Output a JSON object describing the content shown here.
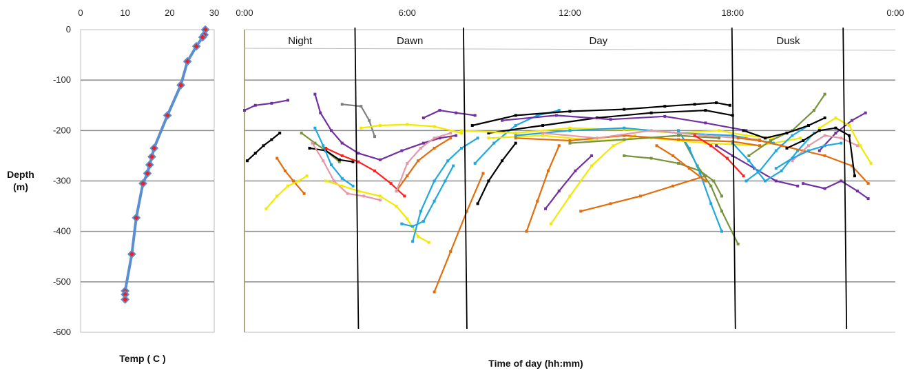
{
  "chart_data": [
    {
      "type": "line",
      "subtype": "temperature-depth-profile",
      "xlabel": "Temp ( C )",
      "ylabel": "Depth (m)",
      "xlim": [
        0,
        30
      ],
      "ylim": [
        -600,
        0
      ],
      "x_ticks": [
        "0",
        "10",
        "20",
        "30"
      ],
      "y_ticks": [
        "0",
        "-100",
        "-200",
        "-300",
        "-400",
        "-500",
        "-600"
      ],
      "grid": "horizontal",
      "line_color": "#5b8fcf",
      "marker_color": "#e8202a",
      "series": [
        {
          "x": [
            28,
            27.8,
            27.4,
            26,
            24,
            22.5,
            19.5,
            16.5,
            16,
            15.5,
            15,
            14,
            12.5,
            11.5,
            10,
            10,
            10
          ],
          "y": [
            0,
            -10,
            -15,
            -33,
            -63,
            -110,
            -170,
            -235,
            -252,
            -268,
            -285,
            -305,
            -373,
            -445,
            -518,
            -525,
            -535
          ]
        }
      ]
    },
    {
      "type": "line",
      "subtype": "dive-tracks",
      "xlabel": "Time of day (hh:mm)",
      "ylabel": "",
      "x_ticks": [
        "0:00",
        "6:00",
        "12:00",
        "18:00",
        "0:00"
      ],
      "xlim_hours": [
        0,
        24
      ],
      "ylim": [
        -600,
        0
      ],
      "grid": "horizontal",
      "periods": [
        {
          "label": "Night",
          "start_hour": 0,
          "end_hour": 4.1
        },
        {
          "label": "Dawn",
          "start_hour": 4.1,
          "end_hour": 8.1
        },
        {
          "label": "Day",
          "start_hour": 8.1,
          "end_hour": 18.0
        },
        {
          "label": "Dusk",
          "start_hour": 18.0,
          "end_hour": 22.1
        }
      ],
      "palette": {
        "purple": "#7030a0",
        "orange": "#e46c0a",
        "cyan": "#1fa7e0",
        "yellow": "#f2e900",
        "black": "#000000",
        "red": "#ff1f1f",
        "pink": "#e598a8",
        "olive": "#77933c",
        "gray": "#808080"
      },
      "series": [
        {
          "color": "purple",
          "x": [
            0.0,
            0.4,
            1.0,
            1.6
          ],
          "y": [
            -160,
            -150,
            -146,
            -140
          ]
        },
        {
          "color": "black",
          "x": [
            0.1,
            0.4,
            0.7,
            1.0,
            1.3
          ],
          "y": [
            -260,
            -245,
            -230,
            -218,
            -205
          ]
        },
        {
          "color": "orange",
          "x": [
            1.2,
            1.5,
            1.8,
            2.2
          ],
          "y": [
            -255,
            -280,
            -300,
            -325
          ]
        },
        {
          "color": "yellow",
          "x": [
            0.8,
            1.2,
            1.6,
            2.0,
            2.3
          ],
          "y": [
            -355,
            -330,
            -310,
            -300,
            -290
          ]
        },
        {
          "color": "olive",
          "x": [
            2.1,
            2.6,
            3.0,
            3.5
          ],
          "y": [
            -205,
            -225,
            -240,
            -262
          ]
        },
        {
          "color": "black",
          "x": [
            2.4,
            3.0,
            3.5,
            4.0
          ],
          "y": [
            -235,
            -240,
            -258,
            -262
          ]
        },
        {
          "color": "pink",
          "x": [
            2.5,
            2.9,
            3.3,
            3.8,
            4.4,
            5.0
          ],
          "y": [
            -225,
            -260,
            -300,
            -325,
            -330,
            -338
          ]
        },
        {
          "color": "cyan",
          "x": [
            2.6,
            2.9,
            3.2,
            3.6,
            4.0
          ],
          "y": [
            -195,
            -230,
            -268,
            -295,
            -310
          ]
        },
        {
          "color": "yellow",
          "x": [
            3.0,
            3.6,
            4.2,
            5.0,
            5.6,
            6.0,
            6.4,
            6.8
          ],
          "y": [
            -300,
            -310,
            -320,
            -330,
            -350,
            -375,
            -410,
            -422
          ]
        },
        {
          "color": "purple",
          "x": [
            2.6,
            2.8,
            3.2,
            3.6,
            4.2,
            5.0,
            5.8,
            6.6,
            7.2,
            7.8
          ],
          "y": [
            -128,
            -165,
            -200,
            -225,
            -245,
            -258,
            -240,
            -225,
            -215,
            -210
          ]
        },
        {
          "color": "gray",
          "x": [
            3.6,
            4.3,
            4.6,
            4.8
          ],
          "y": [
            -148,
            -152,
            -180,
            -212
          ]
        },
        {
          "color": "red",
          "x": [
            3.0,
            3.6,
            4.2,
            4.8,
            5.4,
            5.9
          ],
          "y": [
            -235,
            -250,
            -262,
            -280,
            -305,
            -330
          ]
        },
        {
          "color": "orange",
          "x": [
            5.6,
            6.0,
            6.4,
            7.0,
            7.6
          ],
          "y": [
            -320,
            -290,
            -260,
            -235,
            -215
          ]
        },
        {
          "color": "cyan",
          "x": [
            5.8,
            6.2,
            6.6,
            7.0,
            7.4,
            7.7
          ],
          "y": [
            -385,
            -390,
            -380,
            -340,
            -300,
            -270
          ]
        },
        {
          "color": "cyan",
          "x": [
            6.2,
            6.5,
            7.0,
            7.5,
            8.0,
            8.6
          ],
          "y": [
            -420,
            -360,
            -300,
            -260,
            -235,
            -215
          ]
        },
        {
          "color": "pink",
          "x": [
            5.6,
            6.0,
            6.5,
            7.0,
            7.6
          ],
          "y": [
            -320,
            -265,
            -235,
            -215,
            -205
          ]
        },
        {
          "color": "purple",
          "x": [
            6.6,
            7.2,
            7.8,
            8.5
          ],
          "y": [
            -175,
            -160,
            -165,
            -170
          ]
        },
        {
          "color": "yellow",
          "x": [
            4.3,
            5.0,
            6.0,
            7.0,
            8.0
          ],
          "y": [
            -195,
            -190,
            -188,
            -192,
            -205
          ]
        },
        {
          "color": "orange",
          "x": [
            7.0,
            7.6,
            8.2,
            8.8
          ],
          "y": [
            -520,
            -440,
            -360,
            -285
          ]
        },
        {
          "color": "black",
          "x": [
            8.6,
            9.0,
            9.5,
            10.0
          ],
          "y": [
            -345,
            -300,
            -260,
            -225
          ]
        },
        {
          "color": "cyan",
          "x": [
            8.5,
            9.2,
            10.0,
            10.8,
            11.6
          ],
          "y": [
            -265,
            -225,
            -190,
            -170,
            -160
          ]
        },
        {
          "color": "orange",
          "x": [
            10.4,
            10.8,
            11.2,
            11.6
          ],
          "y": [
            -400,
            -340,
            -280,
            -230
          ]
        },
        {
          "color": "purple",
          "x": [
            11.1,
            11.6,
            12.2,
            12.8
          ],
          "y": [
            -355,
            -320,
            -280,
            -250
          ]
        },
        {
          "color": "yellow",
          "x": [
            11.3,
            12.0,
            12.8,
            13.6,
            14.4
          ],
          "y": [
            -385,
            -330,
            -270,
            -230,
            -210
          ]
        },
        {
          "color": "orange",
          "x": [
            12.4,
            13.5,
            14.6,
            15.8,
            17.0
          ],
          "y": [
            -360,
            -345,
            -330,
            -310,
            -290
          ]
        },
        {
          "color": "olive",
          "x": [
            14.0,
            15.0,
            16.0,
            16.8,
            17.3,
            17.6
          ],
          "y": [
            -250,
            -255,
            -265,
            -280,
            -300,
            -330
          ]
        },
        {
          "color": "olive",
          "x": [
            16.2,
            16.7,
            17.2,
            17.6,
            18.2
          ],
          "y": [
            -220,
            -270,
            -310,
            -360,
            -425
          ]
        },
        {
          "color": "cyan",
          "x": [
            16.0,
            16.4,
            16.8,
            17.2,
            17.6
          ],
          "y": [
            -200,
            -235,
            -285,
            -345,
            -400
          ]
        },
        {
          "color": "orange",
          "x": [
            15.2,
            15.8,
            16.4,
            17.0
          ],
          "y": [
            -230,
            -250,
            -275,
            -300
          ]
        },
        {
          "color": "black",
          "x": [
            8.4,
            10.0,
            12.0,
            14.0,
            15.5,
            16.6,
            17.4,
            17.9
          ],
          "y": [
            -190,
            -170,
            -162,
            -158,
            -152,
            -148,
            -145,
            -150
          ]
        },
        {
          "color": "black",
          "x": [
            9.0,
            11.0,
            13.0,
            15.0,
            17.0,
            18.0
          ],
          "y": [
            -205,
            -190,
            -175,
            -165,
            -160,
            -170
          ]
        },
        {
          "color": "yellow",
          "x": [
            8.0,
            10.0,
            12.0,
            14.0,
            16.0,
            17.5,
            18.5,
            19.5
          ],
          "y": [
            -200,
            -205,
            -195,
            -198,
            -205,
            -200,
            -210,
            -215
          ]
        },
        {
          "color": "yellow",
          "x": [
            9.0,
            11.0,
            13.0,
            15.0,
            17.0,
            19.0,
            20.5
          ],
          "y": [
            -215,
            -210,
            -220,
            -215,
            -225,
            -230,
            -215
          ]
        },
        {
          "color": "purple",
          "x": [
            9.5,
            11.5,
            13.5,
            15.5,
            17.0,
            18.5
          ],
          "y": [
            -180,
            -170,
            -178,
            -172,
            -185,
            -200
          ]
        },
        {
          "color": "cyan",
          "x": [
            10.0,
            12.0,
            14.0,
            16.0,
            18.0,
            19.5
          ],
          "y": [
            -210,
            -200,
            -195,
            -205,
            -210,
            -225
          ]
        },
        {
          "color": "orange",
          "x": [
            10.0,
            12.0,
            14.0,
            16.0,
            18.0,
            19.0
          ],
          "y": [
            -215,
            -220,
            -210,
            -218,
            -222,
            -230
          ]
        },
        {
          "color": "pink",
          "x": [
            11.0,
            13.0,
            15.0,
            17.0,
            19.0
          ],
          "y": [
            -205,
            -215,
            -200,
            -210,
            -218
          ]
        },
        {
          "color": "olive",
          "x": [
            12.0,
            14.0,
            16.0,
            17.5
          ],
          "y": [
            -225,
            -218,
            -210,
            -215
          ]
        },
        {
          "color": "red",
          "x": [
            16.6,
            17.2,
            17.8,
            18.4
          ],
          "y": [
            -210,
            -230,
            -255,
            -290
          ]
        },
        {
          "color": "purple",
          "x": [
            17.4,
            18.0,
            18.8,
            19.6,
            20.4
          ],
          "y": [
            -230,
            -250,
            -275,
            -300,
            -310
          ]
        },
        {
          "color": "cyan",
          "x": [
            18.0,
            18.6,
            19.2,
            19.8,
            20.4,
            21.0
          ],
          "y": [
            -225,
            -260,
            -300,
            -280,
            -240,
            -205
          ]
        },
        {
          "color": "cyan",
          "x": [
            18.5,
            19.0,
            19.6,
            20.2,
            20.8
          ],
          "y": [
            -300,
            -280,
            -240,
            -210,
            -190
          ]
        },
        {
          "color": "olive",
          "x": [
            18.6,
            19.4,
            20.2,
            21.0,
            21.4
          ],
          "y": [
            -250,
            -220,
            -200,
            -160,
            -128
          ]
        },
        {
          "color": "orange",
          "x": [
            18.2,
            19.0,
            19.8,
            20.6,
            21.4,
            22.4,
            23.0
          ],
          "y": [
            -215,
            -220,
            -230,
            -240,
            -250,
            -270,
            -305
          ]
        },
        {
          "color": "purple",
          "x": [
            20.6,
            21.4,
            22.0,
            22.6,
            23.0
          ],
          "y": [
            -305,
            -315,
            -300,
            -320,
            -335
          ]
        },
        {
          "color": "purple",
          "x": [
            21.2,
            21.8,
            22.4,
            22.9
          ],
          "y": [
            -240,
            -205,
            -180,
            -165
          ]
        },
        {
          "color": "yellow",
          "x": [
            21.2,
            21.8,
            22.3,
            22.7,
            23.1
          ],
          "y": [
            -195,
            -175,
            -190,
            -230,
            -265
          ]
        },
        {
          "color": "pink",
          "x": [
            20.2,
            20.8,
            21.4,
            22.0,
            22.6
          ],
          "y": [
            -260,
            -230,
            -210,
            -215,
            -230
          ]
        },
        {
          "color": "black",
          "x": [
            20.0,
            20.6,
            21.2,
            21.8,
            22.3,
            22.5
          ],
          "y": [
            -235,
            -220,
            -200,
            -195,
            -210,
            -290
          ]
        },
        {
          "color": "black",
          "x": [
            18.4,
            19.2,
            20.0,
            20.8,
            21.4
          ],
          "y": [
            -200,
            -215,
            -205,
            -190,
            -175
          ]
        },
        {
          "color": "cyan",
          "x": [
            19.6,
            20.2,
            20.8,
            21.4,
            22.0
          ],
          "y": [
            -275,
            -255,
            -240,
            -230,
            -225
          ]
        }
      ]
    }
  ]
}
